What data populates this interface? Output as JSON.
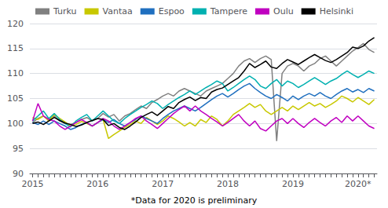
{
  "chart_data": {
    "type": "line",
    "categories": [
      "2015",
      null,
      null,
      null,
      null,
      null,
      null,
      null,
      null,
      null,
      null,
      null,
      "2016",
      null,
      null,
      null,
      null,
      null,
      null,
      null,
      null,
      null,
      null,
      null,
      "2017",
      null,
      null,
      null,
      null,
      null,
      null,
      null,
      null,
      null,
      null,
      null,
      "2018",
      null,
      null,
      null,
      null,
      null,
      null,
      null,
      null,
      null,
      null,
      null,
      "2019",
      null,
      null,
      null,
      null,
      null,
      null,
      null,
      null,
      null,
      null,
      null,
      "2020*",
      null,
      null,
      null
    ],
    "series": [
      {
        "name": "Turku",
        "color": "#808080",
        "values": [
          100.2,
          101.0,
          101.5,
          100.8,
          101.5,
          100.5,
          100.0,
          99.8,
          100.2,
          100.8,
          101.2,
          100.5,
          101.0,
          102.0,
          101.3,
          101.8,
          100.5,
          101.5,
          102.0,
          102.8,
          103.5,
          103.0,
          104.2,
          104.8,
          105.5,
          106.0,
          105.5,
          106.5,
          107.0,
          106.5,
          106.0,
          105.5,
          106.5,
          107.0,
          107.5,
          108.0,
          109.0,
          110.0,
          111.5,
          112.5,
          113.0,
          112.2,
          113.0,
          113.5,
          112.8,
          96.5,
          110.0,
          111.5,
          112.0,
          111.5,
          110.5,
          111.5,
          112.0,
          113.0,
          113.5,
          112.5,
          111.5,
          112.5,
          113.5,
          114.5,
          115.2,
          116.0,
          114.8,
          114.2
        ]
      },
      {
        "name": "Vantaa",
        "color": "#c8c800",
        "values": [
          101.2,
          100.8,
          101.5,
          100.5,
          101.8,
          101.0,
          100.3,
          99.5,
          99.8,
          100.4,
          100.0,
          99.5,
          100.2,
          100.8,
          97.0,
          97.8,
          98.5,
          99.2,
          99.8,
          100.5,
          100.0,
          101.2,
          100.5,
          99.8,
          100.5,
          101.5,
          101.0,
          100.3,
          99.5,
          100.2,
          99.5,
          100.8,
          100.2,
          101.5,
          100.8,
          99.5,
          100.5,
          101.8,
          102.5,
          103.2,
          104.0,
          103.2,
          103.8,
          102.5,
          101.8,
          102.5,
          103.2,
          102.5,
          103.5,
          102.8,
          103.5,
          104.2,
          103.5,
          104.0,
          103.2,
          103.8,
          104.5,
          105.5,
          105.0,
          104.3,
          105.2,
          104.5,
          103.8,
          104.8
        ]
      },
      {
        "name": "Espoo",
        "color": "#1f6fbf",
        "values": [
          100.2,
          99.8,
          100.5,
          99.8,
          100.5,
          100.0,
          99.5,
          98.8,
          99.2,
          99.8,
          100.2,
          99.5,
          100.2,
          100.8,
          100.2,
          100.8,
          100.0,
          99.5,
          100.2,
          100.8,
          101.5,
          101.0,
          100.5,
          100.0,
          101.0,
          101.8,
          102.5,
          103.0,
          103.5,
          103.0,
          102.5,
          103.2,
          104.0,
          104.8,
          105.5,
          106.0,
          105.3,
          106.0,
          106.8,
          107.5,
          108.0,
          107.0,
          106.2,
          105.5,
          105.0,
          105.8,
          105.2,
          104.5,
          105.5,
          104.8,
          105.5,
          106.0,
          105.5,
          106.2,
          105.5,
          105.0,
          105.8,
          106.5,
          107.0,
          106.3,
          106.8,
          106.2,
          107.0,
          106.5
        ]
      },
      {
        "name": "Tampere",
        "color": "#00b0b0",
        "values": [
          100.5,
          101.5,
          102.5,
          101.0,
          102.0,
          100.8,
          100.0,
          99.3,
          100.5,
          101.2,
          101.8,
          100.5,
          101.5,
          102.5,
          101.5,
          100.5,
          100.0,
          101.0,
          101.8,
          102.5,
          103.2,
          103.8,
          104.5,
          104.0,
          103.0,
          103.8,
          104.5,
          105.2,
          105.8,
          106.5,
          105.8,
          106.5,
          107.2,
          107.8,
          108.5,
          108.0,
          106.5,
          107.2,
          108.0,
          108.8,
          109.5,
          108.8,
          107.5,
          107.0,
          108.0,
          108.8,
          107.5,
          108.5,
          108.0,
          107.2,
          107.8,
          108.5,
          109.2,
          108.5,
          107.8,
          108.5,
          109.0,
          109.8,
          110.5,
          109.8,
          109.2,
          109.8,
          110.5,
          110.0
        ]
      },
      {
        "name": "Oulu",
        "color": "#c000c0",
        "values": [
          100.5,
          104.0,
          101.5,
          100.8,
          100.5,
          99.5,
          98.8,
          99.5,
          100.2,
          100.8,
          100.2,
          99.5,
          100.2,
          101.0,
          100.5,
          99.5,
          98.8,
          99.5,
          100.2,
          101.0,
          101.5,
          100.5,
          99.8,
          99.0,
          100.0,
          101.0,
          102.0,
          102.8,
          103.5,
          102.5,
          103.5,
          102.5,
          101.8,
          101.0,
          100.3,
          99.5,
          100.2,
          101.0,
          101.8,
          100.5,
          99.5,
          100.5,
          99.0,
          98.5,
          99.5,
          100.5,
          101.0,
          100.0,
          101.0,
          100.0,
          99.2,
          100.2,
          101.0,
          100.2,
          99.5,
          100.5,
          101.2,
          100.2,
          101.5,
          100.5,
          101.5,
          100.5,
          99.5,
          99.0
        ]
      },
      {
        "name": "Helsinki",
        "color": "#000000",
        "values": [
          100.0,
          100.3,
          99.8,
          100.5,
          101.2,
          100.6,
          100.1,
          99.8,
          99.4,
          99.7,
          100.2,
          100.6,
          101.0,
          100.8,
          99.6,
          100.0,
          99.2,
          98.8,
          99.5,
          100.3,
          101.2,
          101.8,
          102.3,
          101.6,
          102.5,
          103.4,
          103.0,
          104.2,
          104.8,
          105.3,
          104.6,
          105.2,
          105.0,
          106.3,
          106.8,
          107.1,
          107.8,
          108.5,
          109.2,
          110.5,
          112.0,
          111.2,
          111.8,
          112.5,
          111.3,
          111.0,
          112.0,
          112.8,
          112.3,
          111.8,
          112.5,
          113.2,
          113.8,
          113.2,
          112.6,
          112.2,
          112.8,
          113.5,
          114.2,
          115.3,
          115.0,
          115.5,
          116.5,
          117.2
        ]
      }
    ],
    "ylim": [
      90,
      120
    ],
    "yticks": [
      90,
      95,
      100,
      105,
      110,
      115,
      120
    ],
    "grid": true,
    "legend": "upper left",
    "annotations": [
      "*Data for 2020 is preliminary"
    ]
  }
}
